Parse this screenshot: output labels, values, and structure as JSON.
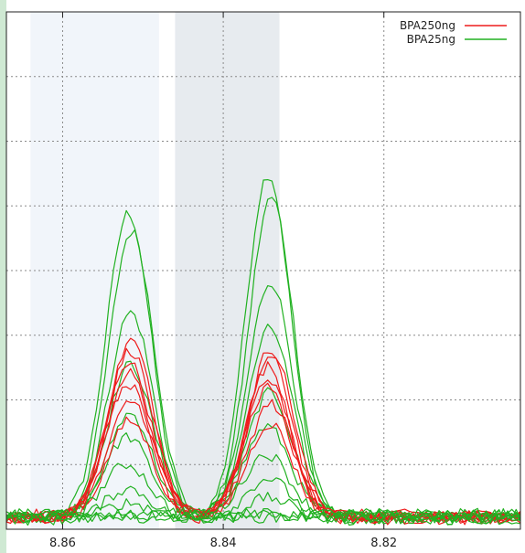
{
  "chart_data": {
    "type": "line",
    "title": "",
    "xlabel": "",
    "ylabel": "",
    "x_reversed": true,
    "xlim": [
      8.867,
      8.803
    ],
    "ylim": [
      0,
      1
    ],
    "x_ticks": [
      "8.86",
      "8.84",
      "8.82"
    ],
    "x_tick_values": [
      8.86,
      8.84,
      8.82
    ],
    "grid": true,
    "legend_position": "top-right",
    "highlight_bands": [
      {
        "x_start": 8.864,
        "x_end": 8.848,
        "color": "#f1f5fa"
      },
      {
        "x_start": 8.846,
        "x_end": 8.833,
        "color": "#e7ebef"
      }
    ],
    "peaks": [
      8.8517,
      8.8343
    ],
    "peak_width": 0.0028,
    "series": [
      {
        "name": "BPA250ng",
        "color": "#ee1c1c",
        "peak_heights": [
          [
            0.34,
            0.325
          ],
          [
            0.325,
            0.31
          ],
          [
            0.3,
            0.29
          ],
          [
            0.28,
            0.27
          ],
          [
            0.26,
            0.25
          ],
          [
            0.22,
            0.215
          ],
          [
            0.19,
            0.185
          ],
          [
            0.15,
            0.14
          ],
          [
            0.12,
            0.11
          ],
          [
            0.09,
            0.085
          ],
          [
            0.05,
            0.04
          ],
          [
            0.03,
            0.025
          ],
          [
            0.0,
            0.0
          ],
          [
            0.0,
            0.0
          ]
        ]
      },
      {
        "name": "BPA25ng",
        "color": "#21b121",
        "peak_heights": [
          [
            0.59,
            0.665
          ],
          [
            0.555,
            0.62
          ],
          [
            0.4,
            0.46
          ],
          [
            0.29,
            0.36
          ],
          [
            0.2,
            0.24
          ],
          [
            0.15,
            0.17
          ],
          [
            0.1,
            0.12
          ],
          [
            0.06,
            0.08
          ],
          [
            0.03,
            0.04
          ],
          [
            0.0,
            0.0
          ],
          [
            0.0,
            0.0
          ],
          [
            0.0,
            0.0
          ]
        ]
      }
    ]
  }
}
